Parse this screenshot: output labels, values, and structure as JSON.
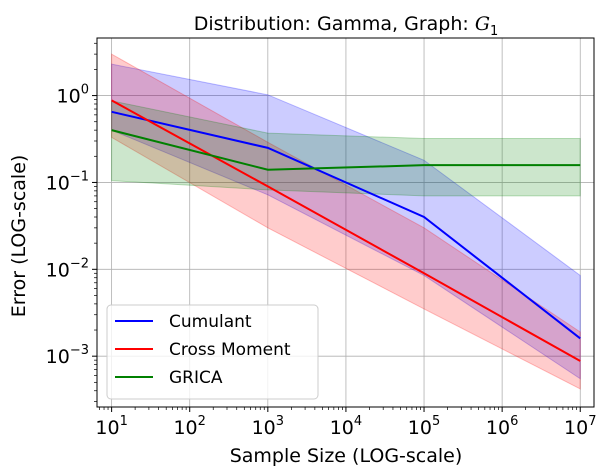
{
  "chart_data": {
    "type": "line",
    "title_prefix": "Distribution: Gamma, Graph: ",
    "title_graph_base": "G",
    "title_graph_sub": "1",
    "xlabel": "Sample Size (LOG-scale)",
    "ylabel": "Error (LOG-scale)",
    "xscale": "log",
    "yscale": "log",
    "xlim": [
      6.5,
      15000000
    ],
    "ylim": [
      0.00026,
      4.6
    ],
    "grid": true,
    "legend_position": "lower-left",
    "x": [
      10,
      1000,
      100000,
      10000000
    ],
    "x_tick_labels": [
      {
        "base": "10",
        "exp": "1",
        "value": 10
      },
      {
        "base": "10",
        "exp": "2",
        "value": 100
      },
      {
        "base": "10",
        "exp": "3",
        "value": 1000
      },
      {
        "base": "10",
        "exp": "4",
        "value": 10000
      },
      {
        "base": "10",
        "exp": "5",
        "value": 100000
      },
      {
        "base": "10",
        "exp": "6",
        "value": 1000000
      },
      {
        "base": "10",
        "exp": "7",
        "value": 10000000
      }
    ],
    "y_tick_labels": [
      {
        "base": "10",
        "exp": "0",
        "value": 1
      },
      {
        "base": "10",
        "exp": "−1",
        "value": 0.1
      },
      {
        "base": "10",
        "exp": "−2",
        "value": 0.01
      },
      {
        "base": "10",
        "exp": "−3",
        "value": 0.001
      }
    ],
    "series": [
      {
        "name": "Cumulant",
        "color": "#0000ff",
        "band_color": "#0000ff",
        "x": [
          10,
          1000,
          100000,
          10000000
        ],
        "values": [
          0.65,
          0.25,
          0.04,
          0.0016
        ],
        "upper": [
          2.3,
          1.02,
          0.18,
          0.0085
        ],
        "lower": [
          0.4,
          0.072,
          0.0085,
          0.00055
        ]
      },
      {
        "name": "Cross Moment",
        "color": "#ff0000",
        "band_color": "#ff0000",
        "x": [
          10,
          1000,
          100000,
          10000000
        ],
        "values": [
          0.88,
          0.09,
          0.009,
          0.00088
        ],
        "upper": [
          3.0,
          0.29,
          0.03,
          0.0019
        ],
        "lower": [
          0.33,
          0.03,
          0.0035,
          0.00042
        ]
      },
      {
        "name": "GRICA",
        "color": "#008000",
        "band_color": "#008000",
        "x": [
          10,
          1000,
          100000,
          10000000
        ],
        "values": [
          0.4,
          0.14,
          0.158,
          0.158
        ],
        "upper": [
          0.87,
          0.37,
          0.32,
          0.32
        ],
        "lower": [
          0.105,
          0.082,
          0.07,
          0.07
        ]
      }
    ]
  }
}
